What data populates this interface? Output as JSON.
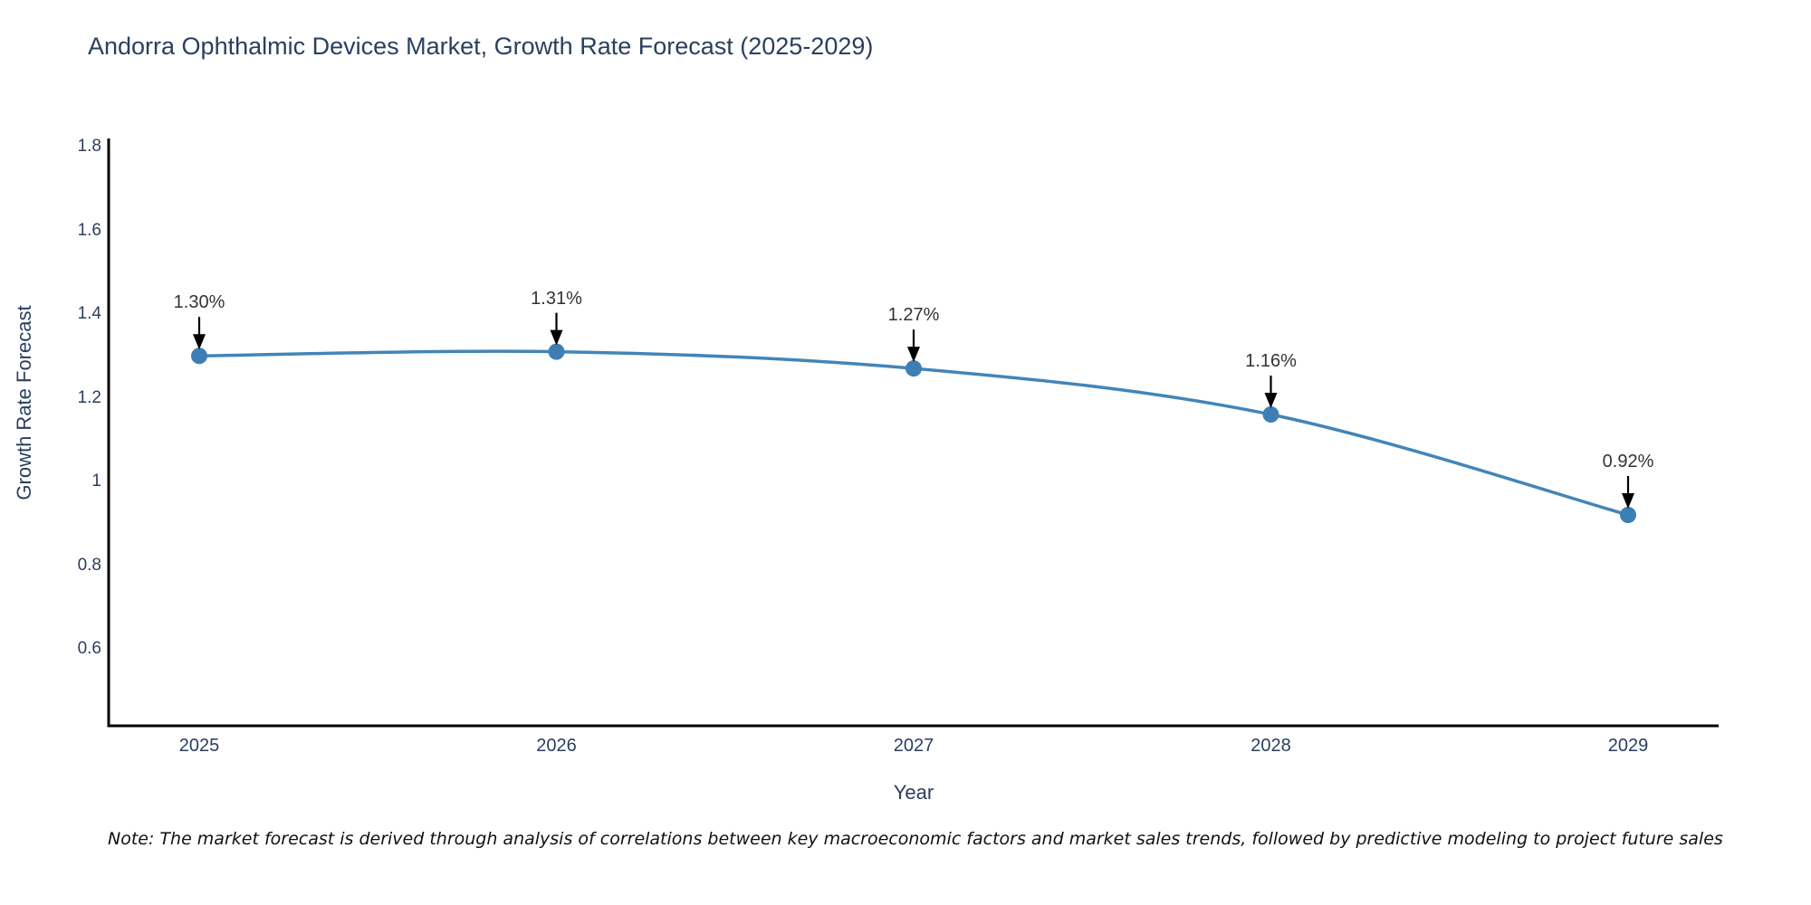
{
  "chart_data": {
    "type": "line",
    "title": "Andorra Ophthalmic Devices Market, Growth Rate Forecast (2025-2029)",
    "xlabel": "Year",
    "ylabel": "Growth Rate Forecast",
    "x": [
      2025,
      2026,
      2027,
      2028,
      2029
    ],
    "x_tick_labels": [
      "2025",
      "2026",
      "2027",
      "2028",
      "2029"
    ],
    "values": [
      1.3,
      1.31,
      1.27,
      1.16,
      0.92
    ],
    "point_labels": [
      "1.30%",
      "1.31%",
      "1.27%",
      "1.16%",
      "0.92%"
    ],
    "y_ticks": [
      1.8,
      1.6,
      1.4,
      1.2,
      1,
      0.8,
      0.6
    ],
    "y_tick_labels": [
      "1.8",
      "1.6",
      "1.4",
      "1.2",
      "1",
      "0.8",
      "0.6"
    ],
    "ylim": [
      0.41,
      1.83
    ],
    "grid": false,
    "legend": false,
    "line_shape": "spline",
    "colors": {
      "line": "#4285b8",
      "marker": "#3d7fb5",
      "axis": "#000000",
      "title_text": "#2a3f5f",
      "tick_text": "#2a3f5f",
      "annotation_text": "#333333",
      "annotation_arrow": "#000000",
      "background": "#ffffff"
    }
  },
  "note": {
    "text": "Note: The market forecast is derived through analysis of correlations between key macroeconomic factors and market sales trends, followed by predictive modeling to project future sales"
  }
}
